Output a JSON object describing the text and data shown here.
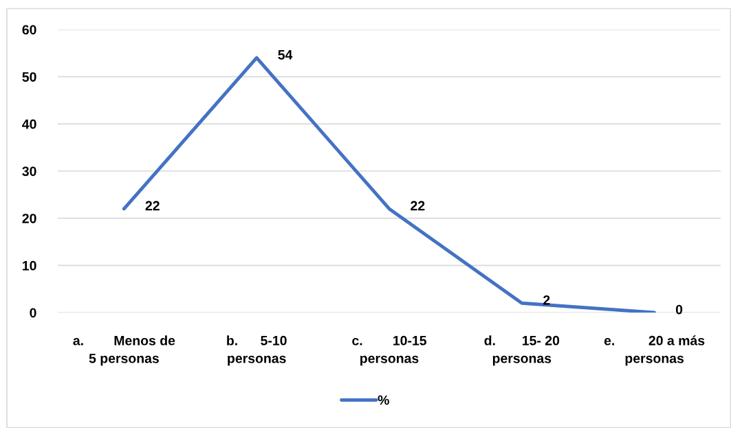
{
  "chart_data": {
    "type": "line",
    "categories": [
      "a.        Menos de\n5 personas",
      "b.      5-10\npersonas",
      "c.        10-15\npersonas",
      "d.       15- 20\npersonas",
      "e.         20 a más\npersonas"
    ],
    "series": [
      {
        "name": "%",
        "color": "#4472c4",
        "values": [
          22,
          54,
          22,
          2,
          0
        ]
      }
    ],
    "ylim": [
      0,
      60
    ],
    "yticks": [
      0,
      10,
      20,
      30,
      40,
      50,
      60
    ],
    "grid": "y",
    "legend": "bottom",
    "data_labels": true,
    "marker": "none",
    "line_style": "solid"
  }
}
